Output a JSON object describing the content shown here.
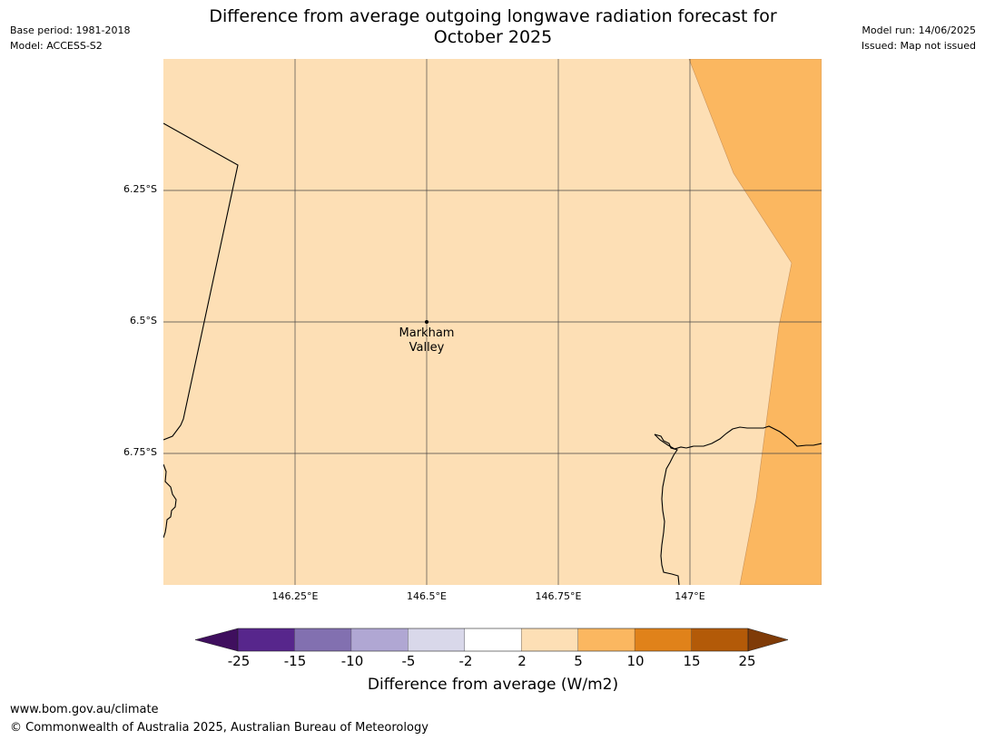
{
  "header": {
    "title_line1": "Difference from average outgoing longwave radiation forecast for",
    "title_line2": "October 2025",
    "base_period": "Base period: 1981-2018",
    "model": "Model: ACCESS-S2",
    "model_run": "Model run: 14/06/2025",
    "issued": "Issued: Map not issued"
  },
  "map": {
    "lat_labels": [
      "6.25°S",
      "6.5°S",
      "6.75°S"
    ],
    "lon_labels": [
      "146.25°E",
      "146.5°E",
      "146.75°E",
      "147°E"
    ],
    "place": {
      "name_line1": "Markham",
      "name_line2": "Valley"
    },
    "colors": {
      "background_class": "#fddfb5",
      "east_class": "#fbb760",
      "coast": "#000000",
      "grid": "#444444"
    }
  },
  "colorbar": {
    "ticks": [
      "-25",
      "-15",
      "-10",
      "-5",
      "-2",
      "2",
      "5",
      "10",
      "15",
      "25"
    ],
    "colors": [
      "#3f0f5e",
      "#57268c",
      "#8270b0",
      "#b0a7d3",
      "#d9d8ea",
      "#ffffff",
      "#fddfb5",
      "#fbb760",
      "#e0821a",
      "#b35a08",
      "#7f3b08"
    ],
    "label": "Difference from average (W/m2)"
  },
  "footer": {
    "url": "www.bom.gov.au/climate",
    "copyright": "© Commonwealth of Australia 2025, Australian Bureau of Meteorology"
  }
}
